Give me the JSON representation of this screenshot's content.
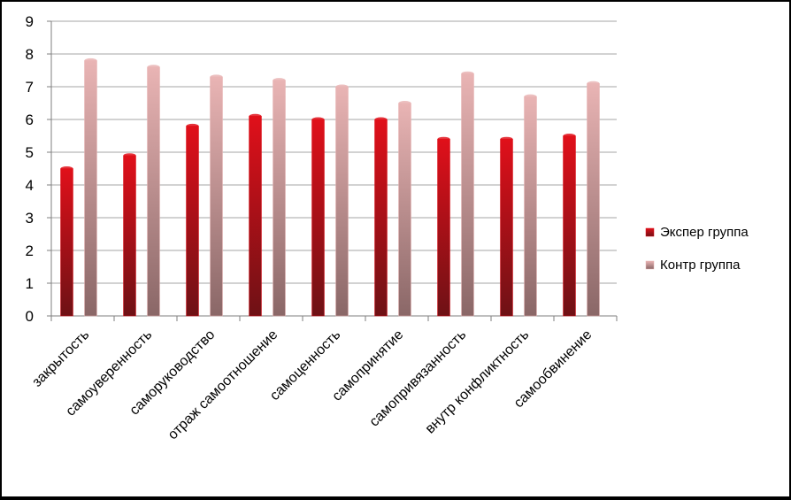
{
  "chart_data": {
    "type": "bar",
    "categories": [
      "закрытость",
      "самоуверенность",
      "саморуководство",
      "отраж самоотношение",
      "самоценность",
      "самопринятие",
      "самопривязанность",
      "внутр конфликтность",
      "самообвинение"
    ],
    "series": [
      {
        "name": "Экспер группа",
        "values": [
          4.5,
          4.9,
          5.8,
          6.1,
          6.0,
          6.0,
          5.4,
          5.4,
          5.5
        ]
      },
      {
        "name": "Контр группа",
        "values": [
          7.8,
          7.6,
          7.3,
          7.2,
          7.0,
          6.5,
          7.4,
          6.7,
          7.1
        ]
      }
    ],
    "ylim": [
      0,
      9
    ],
    "yticks": [
      "0",
      "1",
      "2",
      "3",
      "4",
      "5",
      "6",
      "7",
      "8",
      "9"
    ],
    "grid": true,
    "legend": "right",
    "colors": {
      "series1_top": "#e0101a",
      "series1_bottom": "#6e1115",
      "series2_top": "#e9b4b4",
      "series2_bottom": "#8a6767",
      "grid": "#a6a6a6",
      "axis": "#7f7f7f"
    }
  }
}
